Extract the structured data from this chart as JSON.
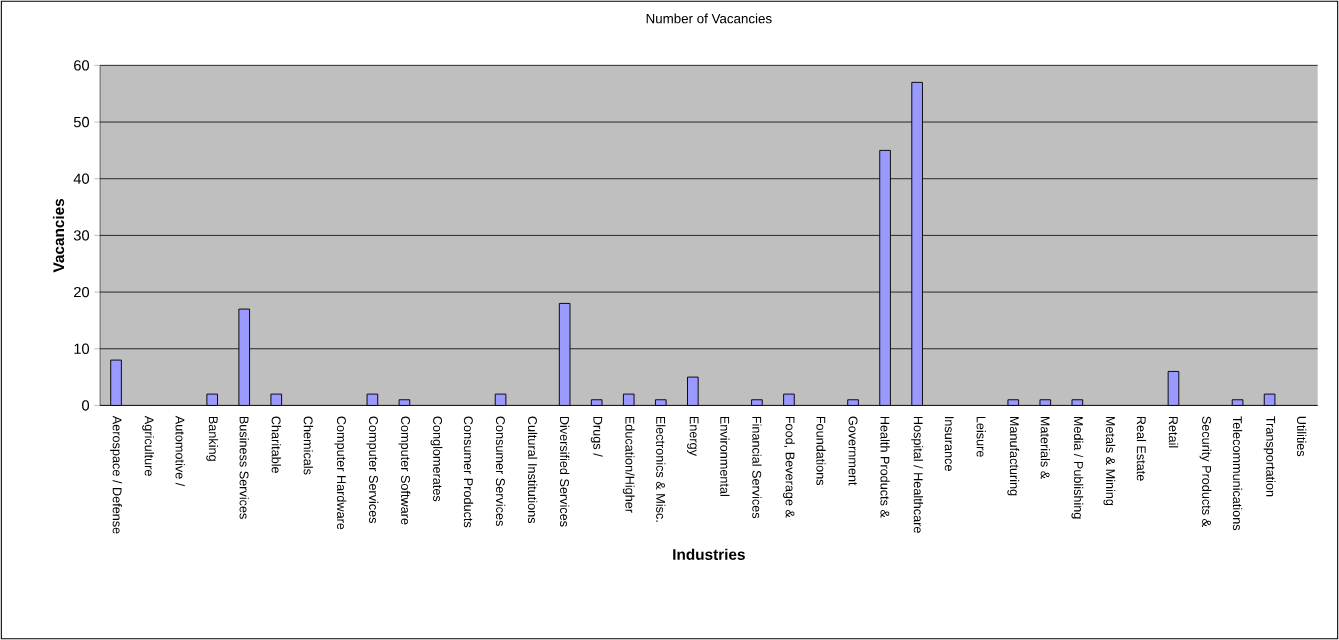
{
  "chart_data": {
    "type": "bar",
    "title": "Number of Vacancies",
    "xlabel": "Industries",
    "ylabel": "Vacancies",
    "categories": [
      "Aerospace / Defense",
      "Agriculture",
      "Automotive /",
      "Banking",
      "Business Services",
      "Charitable",
      "Chemicals",
      "Computer Hardware",
      "Computer Services",
      "Computer Software",
      "Conglomerates",
      "Consumer Products",
      "Consumer Services",
      "Cultural Institutions",
      "Diversified Services",
      "Drugs /",
      "Education/Higher",
      "Electronics & Misc.",
      "Energy",
      "Environmental",
      "Financial Services",
      "Food, Beverage &",
      "Foundations",
      "Government",
      "Health Products &",
      "Hospital / Healthcare",
      "Insurance",
      "Leisure",
      "Manufacturing",
      "Materials &",
      "Media / Publishing",
      "Metals & Mining",
      "Real Estate",
      "Retail",
      "Security Products &",
      "Telecommunications",
      "Transportation",
      "Utilities"
    ],
    "values": [
      8,
      0,
      0,
      2,
      17,
      2,
      0,
      0,
      2,
      1,
      0,
      0,
      2,
      0,
      18,
      1,
      2,
      1,
      5,
      0,
      1,
      2,
      0,
      1,
      45,
      57,
      0,
      0,
      1,
      1,
      1,
      0,
      0,
      6,
      0,
      1,
      2,
      0
    ],
    "color": "#9999ff",
    "ylim": [
      0,
      60
    ],
    "yticks": [
      0,
      10,
      20,
      30,
      40,
      50,
      60
    ],
    "grid": "y"
  }
}
